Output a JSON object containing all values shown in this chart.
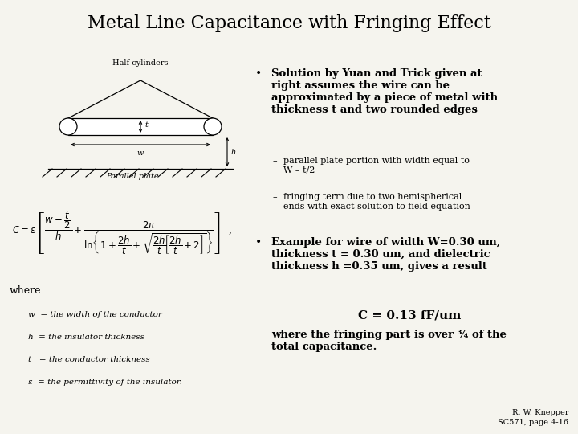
{
  "title": "Metal Line Capacitance with Fringing Effect",
  "title_fontsize": 16,
  "background_color": "#f5f4ee",
  "text_color": "#000000",
  "bullet1_header": "Solution by Yuan and Trick given at\nright assumes the wire can be\napproximated by a piece of metal with\nthickness t and two rounded edges",
  "sub1": "parallel plate portion with width equal to\nW – t/2",
  "sub2": "fringing term due to two hemispherical\nends with exact solution to field equation",
  "bullet2_header": "Example for wire of width W=0.30 um,\nthickness t = 0.30 um, and dielectric\nthickness h =0.35 um, gives a result",
  "result_line": "C = 0.13 fF/um",
  "conclusion": "where the fringing part is over ¾ of the\ntotal capacitance.",
  "where_label": "where",
  "def1": "w  = the width of the conductor",
  "def2": "h  = the insulator thickness",
  "def3": "t   = the conductor thickness",
  "def4": "ε  = the permittivity of the insulator.",
  "footer1": "R. W. Knepper",
  "footer2": "SC571, page 4-16",
  "diag_label_half": "Half cylinders",
  "diag_label_parallel": "Parallel plate"
}
